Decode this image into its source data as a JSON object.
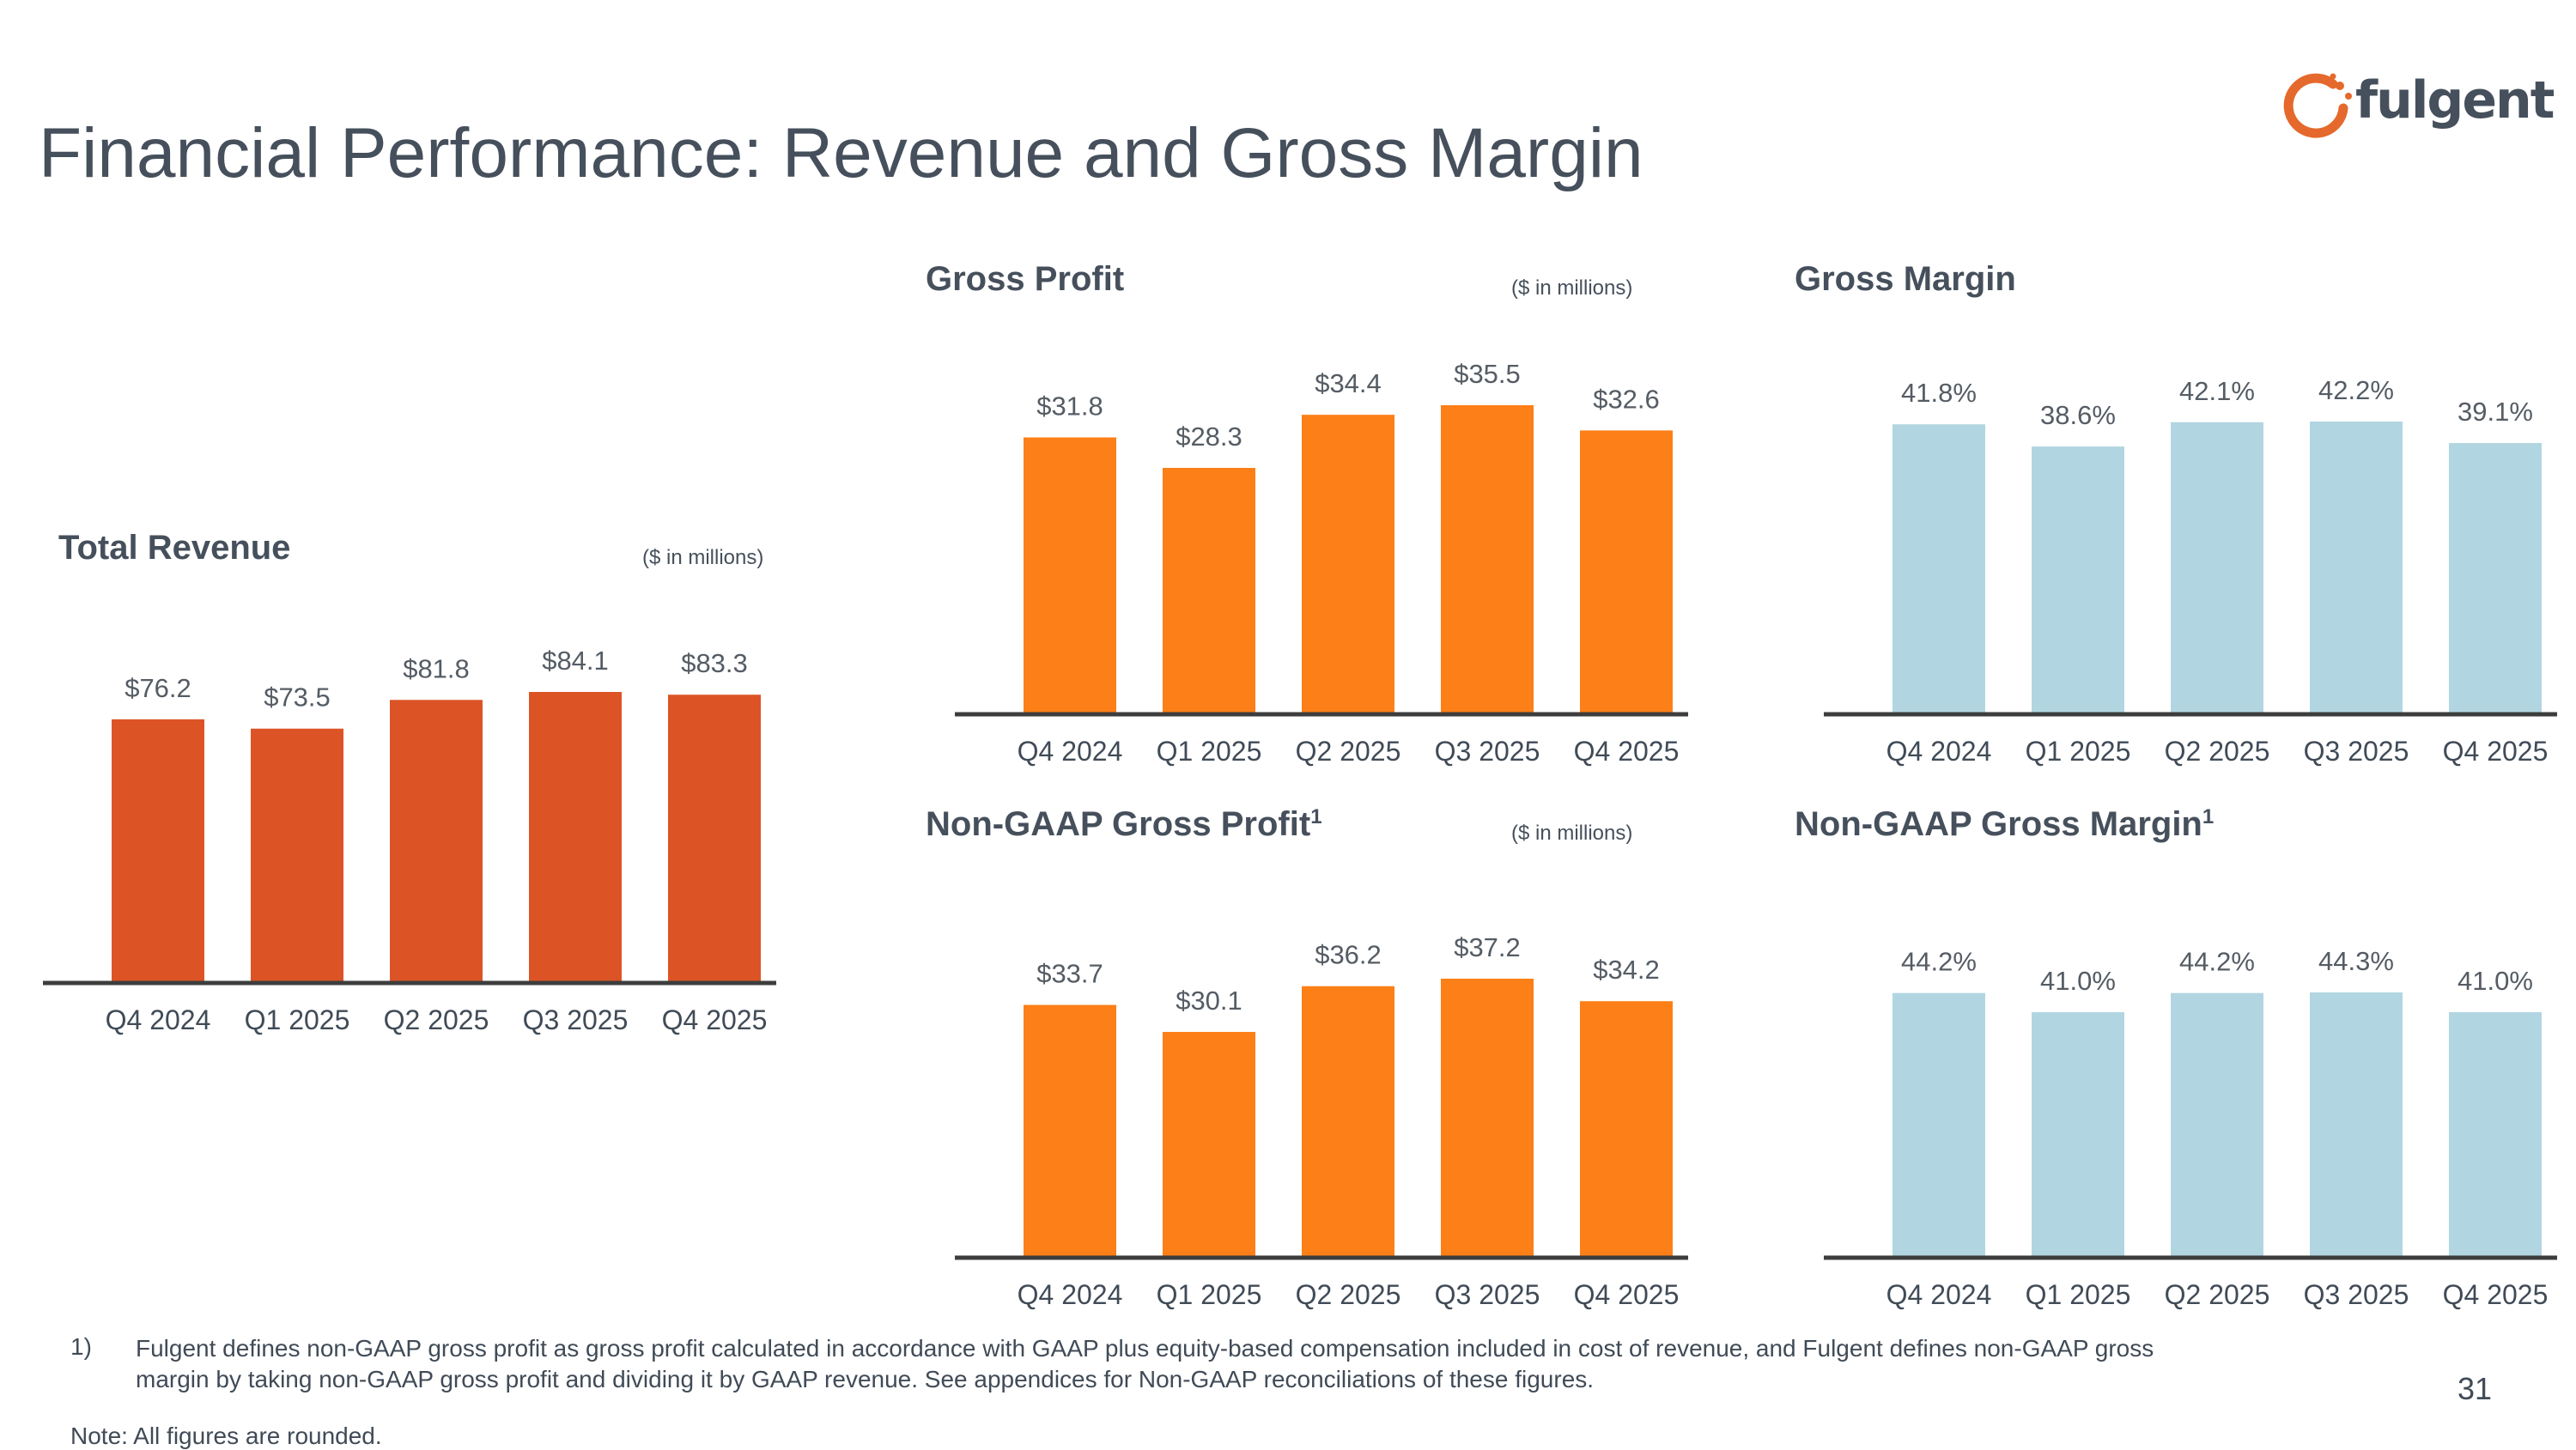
{
  "page": {
    "title": "Financial Performance: Revenue and Gross Margin",
    "logo_text": "fulgent",
    "footnote_number": "1)",
    "footnote": "Fulgent defines non-GAAP gross profit as gross profit calculated in accordance with GAAP plus equity-based compensation included in cost of revenue, and Fulgent defines non-GAAP gross margin by taking non-GAAP gross profit and dividing it by GAAP revenue.  See appendices for Non-GAAP reconciliations of these figures.",
    "note": "Note: All figures are rounded.",
    "page_number": "31"
  },
  "colors": {
    "revenue_bar": "#dc5426",
    "profit_bar": "#fc7f17",
    "margin_bar": "#b2d6e1",
    "axis": "#3d3d3d",
    "logo_accent": "#e5692c"
  },
  "chart_data": [
    {
      "id": "total-revenue",
      "type": "bar",
      "title": "Total Revenue",
      "title_sup": "",
      "unit_note": "($ in millions)",
      "categories": [
        "Q4 2024",
        "Q1 2025",
        "Q2 2025",
        "Q3 2025",
        "Q4 2025"
      ],
      "values": [
        76.2,
        73.5,
        81.8,
        84.1,
        83.3
      ],
      "labels": [
        "$76.2",
        "$73.5",
        "$81.8",
        "$84.1",
        "$83.3"
      ],
      "ylim": [
        0,
        84.1
      ],
      "color": "revenue_bar"
    },
    {
      "id": "gross-profit",
      "type": "bar",
      "title": "Gross Profit",
      "title_sup": "",
      "unit_note": "($ in millions)",
      "categories": [
        "Q4 2024",
        "Q1 2025",
        "Q2 2025",
        "Q3 2025",
        "Q4 2025"
      ],
      "values": [
        31.8,
        28.3,
        34.4,
        35.5,
        32.6
      ],
      "labels": [
        "$31.8",
        "$28.3",
        "$34.4",
        "$35.5",
        "$32.6"
      ],
      "ylim": [
        0,
        35.5
      ],
      "color": "profit_bar"
    },
    {
      "id": "gross-margin",
      "type": "bar",
      "title": "Gross Margin",
      "title_sup": "",
      "unit_note": "",
      "categories": [
        "Q4 2024",
        "Q1 2025",
        "Q2 2025",
        "Q3 2025",
        "Q4 2025"
      ],
      "values": [
        41.8,
        38.6,
        42.1,
        42.2,
        39.1
      ],
      "labels": [
        "41.8%",
        "38.6%",
        "42.1%",
        "42.2%",
        "39.1%"
      ],
      "ylim": [
        0,
        42.2
      ],
      "color": "margin_bar"
    },
    {
      "id": "non-gaap-gross-profit",
      "type": "bar",
      "title": "Non-GAAP Gross Profit",
      "title_sup": "1",
      "unit_note": "($ in millions)",
      "categories": [
        "Q4 2024",
        "Q1 2025",
        "Q2 2025",
        "Q3 2025",
        "Q4 2025"
      ],
      "values": [
        33.7,
        30.1,
        36.2,
        37.2,
        34.2
      ],
      "labels": [
        "$33.7",
        "$30.1",
        "$36.2",
        "$37.2",
        "$34.2"
      ],
      "ylim": [
        0,
        37.2
      ],
      "color": "profit_bar"
    },
    {
      "id": "non-gaap-gross-margin",
      "type": "bar",
      "title": "Non-GAAP Gross Margin",
      "title_sup": "1",
      "unit_note": "",
      "categories": [
        "Q4 2024",
        "Q1 2025",
        "Q2 2025",
        "Q3 2025",
        "Q4 2025"
      ],
      "values": [
        44.2,
        41.0,
        44.2,
        44.3,
        41.0
      ],
      "labels": [
        "44.2%",
        "41.0%",
        "44.2%",
        "44.3%",
        "41.0%"
      ],
      "ylim": [
        0,
        44.3
      ],
      "color": "margin_bar"
    }
  ]
}
